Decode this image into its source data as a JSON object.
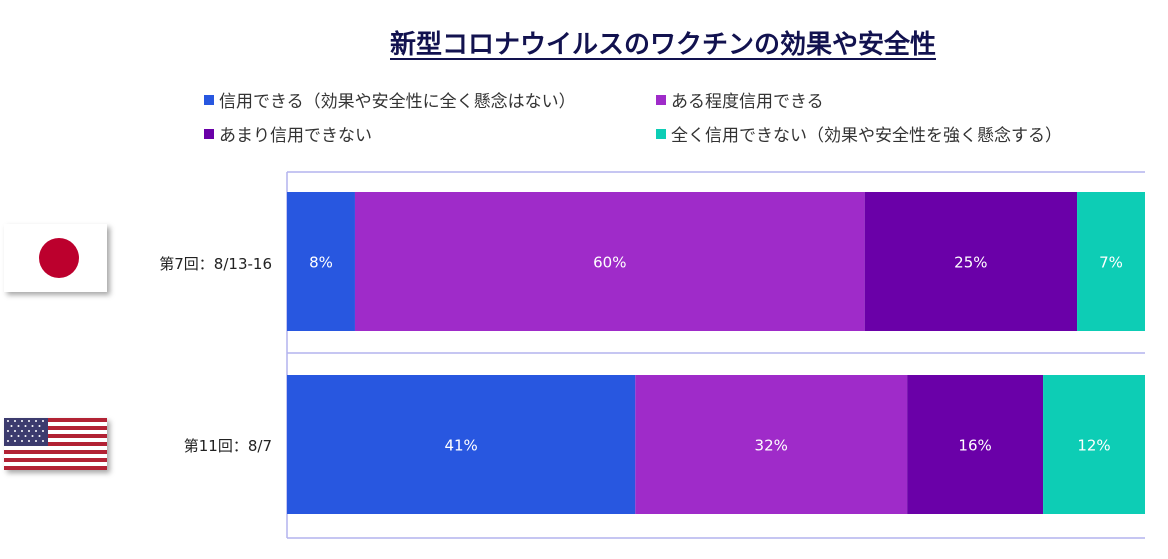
{
  "colors": {
    "trust": "#2857e0",
    "somewhat_trust": "#9f2bc9",
    "not_much": "#6a00a8",
    "not_at_all": "#0dcdb5",
    "title": "#12124f",
    "frame": "#b4b4ee",
    "japan_red": "#bc002d",
    "us_red": "#b22234",
    "us_blue": "#3c3b6e"
  },
  "icons": {
    "japan": "japan-flag-icon",
    "usa": "us-flag-icon"
  },
  "chart_data": {
    "type": "bar",
    "orientation": "horizontal",
    "stacked": true,
    "title": "新型コロナウイルスのワクチンの効果や安全性",
    "categories": [
      "第7回：8/13-16",
      "第11回：8/7"
    ],
    "series": [
      {
        "name": "信用できる（効果や安全性に全く懸念はない）",
        "values": [
          8,
          41
        ]
      },
      {
        "name": "ある程度信用できる",
        "values": [
          60,
          32
        ]
      },
      {
        "name": "あまり信用できない",
        "values": [
          25,
          16
        ]
      },
      {
        "name": "全く信用できない（効果や安全性を強く懸念する）",
        "values": [
          7,
          12
        ]
      }
    ],
    "value_labels": [
      [
        "8%",
        "60%",
        "25%",
        "7%"
      ],
      [
        "41%",
        "32%",
        "16%",
        "12%"
      ]
    ],
    "xlim": [
      0,
      101
    ],
    "legend_position": "top",
    "grid": false
  }
}
